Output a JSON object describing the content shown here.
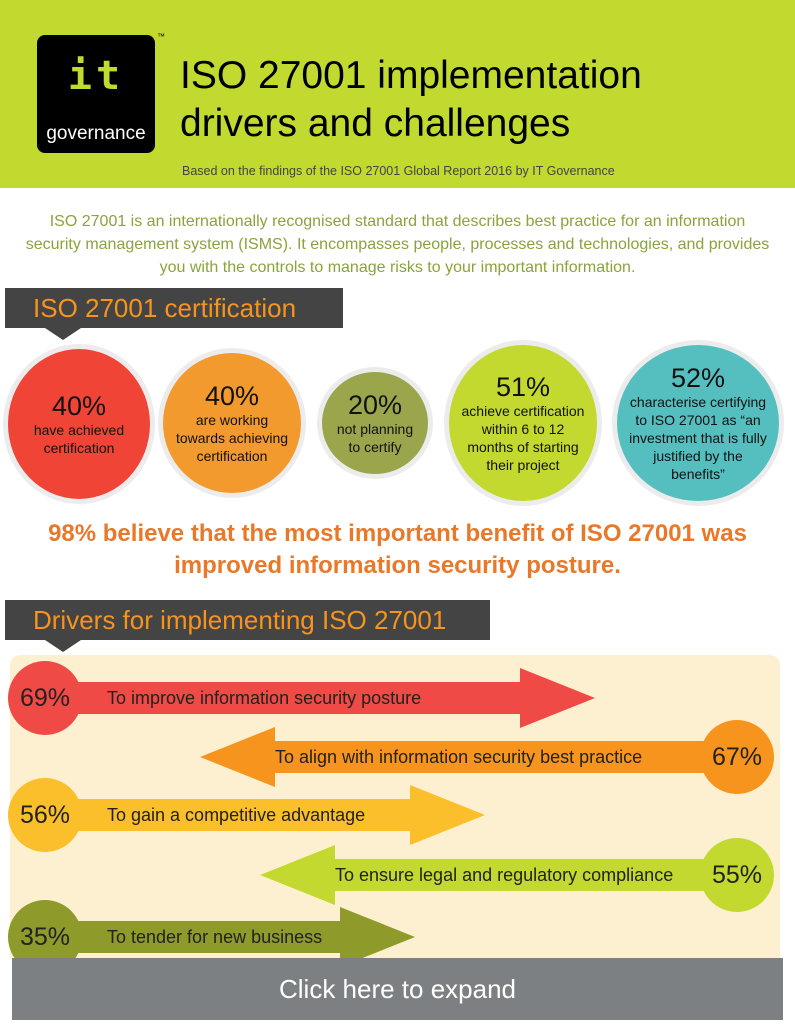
{
  "header": {
    "logo_text": "governance",
    "logo_mark": "it",
    "trademark": "™",
    "title_line1": "ISO 27001 implementation",
    "title_line2": "drivers and challenges",
    "subtitle": "Based on the findings of the ISO 27001 Global Report 2016 by IT Governance"
  },
  "intro": "ISO 27001 is an internationally recognised standard that describes best practice for an information security management system (ISMS). It encompasses people, processes and technologies, and provides you with the controls to manage risks to your important information.",
  "certification": {
    "heading": "ISO 27001 certification",
    "stats": [
      {
        "pct": "40%",
        "text": "have achieved certification",
        "color": "#f04437"
      },
      {
        "pct": "40%",
        "text": "are working towards achieving certification",
        "color": "#f29a2e"
      },
      {
        "pct": "20%",
        "text": "not planning to certify",
        "color": "#9ba54b"
      },
      {
        "pct": "51%",
        "text": "achieve certification within 6 to 12 months of starting their project",
        "color": "#c3d92f"
      },
      {
        "pct": "52%",
        "text": "characterise certifying to ISO 27001 as “an investment that is fully justified by the benefits”",
        "color": "#55bfc0"
      }
    ]
  },
  "headline": "98% believe that the most important benefit of ISO 27001 was improved information security posture.",
  "drivers": {
    "heading": "Drivers for implementing ISO 27001",
    "items": [
      {
        "pct": "69%",
        "label": "To improve information security posture",
        "color": "#ef4a45",
        "value": 69
      },
      {
        "pct": "67%",
        "label": "To align with information security best practice",
        "color": "#f7941e",
        "value": 67
      },
      {
        "pct": "56%",
        "label": "To gain a competitive advantage",
        "color": "#fbbf2b",
        "value": 56
      },
      {
        "pct": "55%",
        "label": "To ensure legal and regulatory compliance",
        "color": "#c3d92f",
        "value": 55
      },
      {
        "pct": "35%",
        "label": "To tender for new business",
        "color": "#8e9a2a",
        "value": 35
      }
    ]
  },
  "expand_label": "Click here to expand"
}
